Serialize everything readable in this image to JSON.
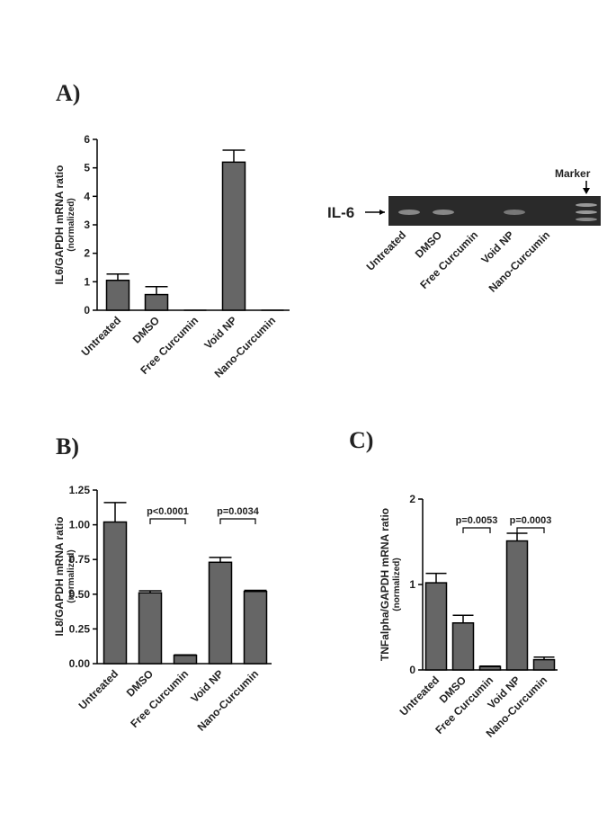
{
  "chart_data": [
    {
      "type": "bar",
      "panel": "A)",
      "y_label": "IL6/GAPDH mRNA ratio",
      "y_label_sub": "(normalized)",
      "categories": [
        "Untreated",
        "DMSO",
        "Free Curcumin",
        "Void NP",
        "Nano-Curcumin"
      ],
      "values": [
        1.05,
        0.55,
        0,
        5.2,
        0
      ],
      "errors": [
        0.22,
        0.28,
        0,
        0.42,
        0
      ],
      "color": "#666666",
      "ylim": [
        0,
        6
      ],
      "yticks": [
        0,
        1,
        2,
        3,
        4,
        5,
        6
      ],
      "annotations": []
    },
    {
      "type": "bar",
      "panel": "B)",
      "y_label": "IL8/GAPDH mRNA ratio",
      "y_label_sub": "(normalized)",
      "categories": [
        "Untreated",
        "DMSO",
        "Free Curcumin",
        "Void NP",
        "Nano-Curcumin"
      ],
      "values": [
        1.02,
        0.51,
        0.06,
        0.73,
        0.52
      ],
      "errors": [
        0.14,
        0.015,
        0.003,
        0.035,
        0.008
      ],
      "color": "#666666",
      "ylim": [
        0,
        1.25
      ],
      "yticks": [
        {
          "value": 0,
          "label": "0.00"
        },
        {
          "value": 0.25,
          "label": "0.25"
        },
        {
          "value": 0.5,
          "label": "0.50"
        },
        {
          "value": 0.75,
          "label": "0.75"
        },
        {
          "value": 1,
          "label": "1.00"
        },
        {
          "value": 1.25,
          "label": "1.25"
        }
      ],
      "annotations": [
        "p<0.0001",
        "p=0.0034"
      ]
    },
    {
      "type": "bar",
      "panel": "C)",
      "y_label": "TNFalpha/GAPDH mRNA ratio",
      "y_label_sub": "(normalized)",
      "categories": [
        "Untreated",
        "DMSO",
        "Free Curcumin",
        "Void NP",
        "Nano-Curcumin"
      ],
      "values": [
        1.02,
        0.55,
        0.04,
        1.51,
        0.12
      ],
      "errors": [
        0.11,
        0.09,
        0.005,
        0.09,
        0.03
      ],
      "color": "#666666",
      "ylim": [
        0,
        2
      ],
      "yticks": [
        0,
        1,
        2
      ],
      "annotations": [
        "p=0.0053",
        "p=0.0003"
      ]
    }
  ],
  "gel": {
    "band_label": "IL-6",
    "marker": "Marker",
    "lanes": [
      "Untreated",
      "DMSO",
      "Free Curcumin",
      "Void NP",
      "Nano-Curcumin"
    ]
  }
}
